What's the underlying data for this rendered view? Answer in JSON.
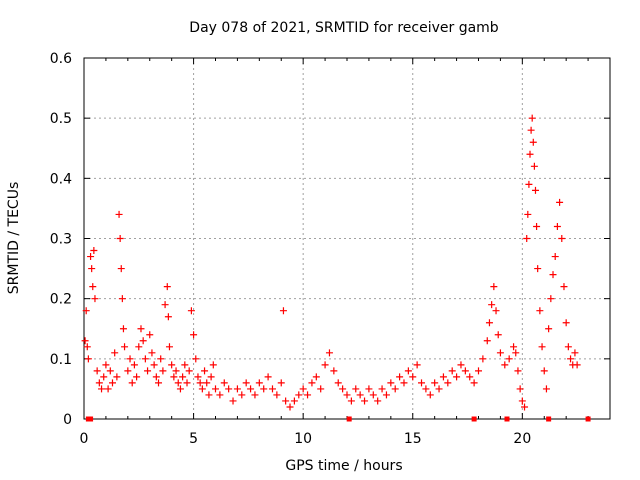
{
  "chart_data": {
    "type": "scatter",
    "title": "Day 078 of 2021, SRMTID for receiver gamb",
    "xlabel": "GPS time / hours",
    "ylabel": "SRMTID / TECUs",
    "xlim": [
      0,
      24
    ],
    "ylim": [
      0,
      0.6
    ],
    "grid": true,
    "marker": "+",
    "color": "#ff0000",
    "x_ticks": [
      0,
      5,
      10,
      15,
      20
    ],
    "x_tick_labels": [
      "0",
      "5",
      "10",
      "15",
      "20"
    ],
    "y_ticks": [
      0,
      0.1,
      0.2,
      0.3,
      0.4,
      0.5,
      0.6
    ],
    "y_tick_labels": [
      "0",
      "0.1",
      "0.2",
      "0.3",
      "0.4",
      "0.5",
      "0.6"
    ],
    "series": [
      {
        "name": "SRMTID",
        "points": [
          [
            0.05,
            0.13
          ],
          [
            0.1,
            0.18
          ],
          [
            0.15,
            0.12
          ],
          [
            0.2,
            0.1
          ],
          [
            0.3,
            0.27
          ],
          [
            0.35,
            0.25
          ],
          [
            0.4,
            0.22
          ],
          [
            0.45,
            0.28
          ],
          [
            0.5,
            0.2
          ],
          [
            0.6,
            0.08
          ],
          [
            0.7,
            0.06
          ],
          [
            0.8,
            0.05
          ],
          [
            0.9,
            0.07
          ],
          [
            1.0,
            0.09
          ],
          [
            1.1,
            0.05
          ],
          [
            1.2,
            0.08
          ],
          [
            1.3,
            0.06
          ],
          [
            1.4,
            0.11
          ],
          [
            1.5,
            0.07
          ],
          [
            1.6,
            0.34
          ],
          [
            1.65,
            0.3
          ],
          [
            1.7,
            0.25
          ],
          [
            1.75,
            0.2
          ],
          [
            1.8,
            0.15
          ],
          [
            1.85,
            0.12
          ],
          [
            2.0,
            0.08
          ],
          [
            2.1,
            0.1
          ],
          [
            2.2,
            0.06
          ],
          [
            2.3,
            0.09
          ],
          [
            2.4,
            0.07
          ],
          [
            2.5,
            0.12
          ],
          [
            2.6,
            0.15
          ],
          [
            2.7,
            0.13
          ],
          [
            2.8,
            0.1
          ],
          [
            2.9,
            0.08
          ],
          [
            3.0,
            0.14
          ],
          [
            3.1,
            0.11
          ],
          [
            3.2,
            0.09
          ],
          [
            3.3,
            0.07
          ],
          [
            3.4,
            0.06
          ],
          [
            3.5,
            0.1
          ],
          [
            3.6,
            0.08
          ],
          [
            3.7,
            0.19
          ],
          [
            3.8,
            0.22
          ],
          [
            3.85,
            0.17
          ],
          [
            3.9,
            0.12
          ],
          [
            4.0,
            0.09
          ],
          [
            4.1,
            0.07
          ],
          [
            4.2,
            0.08
          ],
          [
            4.3,
            0.06
          ],
          [
            4.4,
            0.05
          ],
          [
            4.5,
            0.07
          ],
          [
            4.6,
            0.09
          ],
          [
            4.7,
            0.06
          ],
          [
            4.8,
            0.08
          ],
          [
            4.9,
            0.18
          ],
          [
            5.0,
            0.14
          ],
          [
            5.1,
            0.1
          ],
          [
            5.2,
            0.07
          ],
          [
            5.3,
            0.06
          ],
          [
            5.4,
            0.05
          ],
          [
            5.5,
            0.08
          ],
          [
            5.6,
            0.06
          ],
          [
            5.7,
            0.04
          ],
          [
            5.8,
            0.07
          ],
          [
            5.9,
            0.09
          ],
          [
            6.0,
            0.05
          ],
          [
            6.2,
            0.04
          ],
          [
            6.4,
            0.06
          ],
          [
            6.6,
            0.05
          ],
          [
            6.8,
            0.03
          ],
          [
            7.0,
            0.05
          ],
          [
            7.2,
            0.04
          ],
          [
            7.4,
            0.06
          ],
          [
            7.6,
            0.05
          ],
          [
            7.8,
            0.04
          ],
          [
            8.0,
            0.06
          ],
          [
            8.2,
            0.05
          ],
          [
            8.4,
            0.07
          ],
          [
            8.6,
            0.05
          ],
          [
            8.8,
            0.04
          ],
          [
            9.0,
            0.06
          ],
          [
            9.1,
            0.18
          ],
          [
            9.2,
            0.03
          ],
          [
            9.4,
            0.02
          ],
          [
            9.6,
            0.03
          ],
          [
            9.8,
            0.04
          ],
          [
            10.0,
            0.05
          ],
          [
            10.2,
            0.04
          ],
          [
            10.4,
            0.06
          ],
          [
            10.6,
            0.07
          ],
          [
            10.8,
            0.05
          ],
          [
            11.0,
            0.09
          ],
          [
            11.2,
            0.11
          ],
          [
            11.4,
            0.08
          ],
          [
            11.6,
            0.06
          ],
          [
            11.8,
            0.05
          ],
          [
            12.0,
            0.04
          ],
          [
            12.2,
            0.03
          ],
          [
            12.4,
            0.05
          ],
          [
            12.6,
            0.04
          ],
          [
            12.8,
            0.03
          ],
          [
            13.0,
            0.05
          ],
          [
            13.2,
            0.04
          ],
          [
            13.4,
            0.03
          ],
          [
            13.6,
            0.05
          ],
          [
            13.8,
            0.04
          ],
          [
            14.0,
            0.06
          ],
          [
            14.2,
            0.05
          ],
          [
            14.4,
            0.07
          ],
          [
            14.6,
            0.06
          ],
          [
            14.8,
            0.08
          ],
          [
            15.0,
            0.07
          ],
          [
            15.2,
            0.09
          ],
          [
            15.4,
            0.06
          ],
          [
            15.6,
            0.05
          ],
          [
            15.8,
            0.04
          ],
          [
            16.0,
            0.06
          ],
          [
            16.2,
            0.05
          ],
          [
            16.4,
            0.07
          ],
          [
            16.6,
            0.06
          ],
          [
            16.8,
            0.08
          ],
          [
            17.0,
            0.07
          ],
          [
            17.2,
            0.09
          ],
          [
            17.4,
            0.08
          ],
          [
            17.6,
            0.07
          ],
          [
            17.8,
            0.06
          ],
          [
            18.0,
            0.08
          ],
          [
            18.2,
            0.1
          ],
          [
            18.4,
            0.13
          ],
          [
            18.5,
            0.16
          ],
          [
            18.6,
            0.19
          ],
          [
            18.7,
            0.22
          ],
          [
            18.8,
            0.18
          ],
          [
            18.9,
            0.14
          ],
          [
            19.0,
            0.11
          ],
          [
            19.2,
            0.09
          ],
          [
            19.4,
            0.1
          ],
          [
            19.6,
            0.12
          ],
          [
            19.7,
            0.11
          ],
          [
            19.8,
            0.08
          ],
          [
            19.9,
            0.05
          ],
          [
            20.0,
            0.03
          ],
          [
            20.1,
            0.02
          ],
          [
            20.2,
            0.3
          ],
          [
            20.25,
            0.34
          ],
          [
            20.3,
            0.39
          ],
          [
            20.35,
            0.44
          ],
          [
            20.4,
            0.48
          ],
          [
            20.45,
            0.5
          ],
          [
            20.5,
            0.46
          ],
          [
            20.55,
            0.42
          ],
          [
            20.6,
            0.38
          ],
          [
            20.65,
            0.32
          ],
          [
            20.7,
            0.25
          ],
          [
            20.8,
            0.18
          ],
          [
            20.9,
            0.12
          ],
          [
            21.0,
            0.08
          ],
          [
            21.1,
            0.05
          ],
          [
            21.2,
            0.15
          ],
          [
            21.3,
            0.2
          ],
          [
            21.4,
            0.24
          ],
          [
            21.5,
            0.27
          ],
          [
            21.6,
            0.32
          ],
          [
            21.7,
            0.36
          ],
          [
            21.8,
            0.3
          ],
          [
            21.9,
            0.22
          ],
          [
            22.0,
            0.16
          ],
          [
            22.1,
            0.12
          ],
          [
            22.2,
            0.1
          ],
          [
            22.3,
            0.09
          ],
          [
            22.4,
            0.11
          ],
          [
            22.5,
            0.09
          ]
        ]
      }
    ],
    "axis_markers": [
      0.2,
      0.3,
      12.1,
      17.8,
      19.3,
      21.2,
      23.0
    ]
  }
}
